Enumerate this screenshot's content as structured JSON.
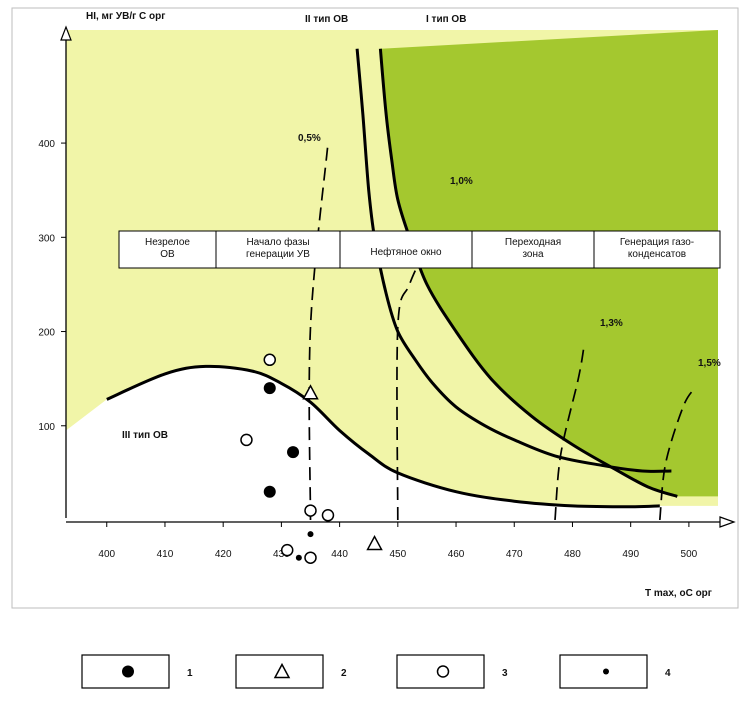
{
  "chart_data": {
    "type": "scatter",
    "xlabel": "T max, oC орг",
    "ylabel": "HI, мг УВ/г С орг",
    "xlim": [
      393,
      505
    ],
    "ylim": [
      0,
      520
    ],
    "x_ticks": [
      "400",
      "410",
      "420",
      "430",
      "440",
      "450",
      "460",
      "470",
      "480",
      "490",
      "500"
    ],
    "x_tick_values": [
      400,
      410,
      420,
      430,
      440,
      450,
      460,
      470,
      480,
      490,
      500
    ],
    "y_ticks": [
      "100",
      "200",
      "300",
      "400"
    ],
    "y_tick_values": [
      100,
      200,
      300,
      400
    ],
    "grid": false,
    "colors": {
      "type2_region": "#f1f5a8",
      "type1_region": "#a4c82f",
      "boundary": "#000000",
      "frame": "#bdbdbd"
    },
    "region_labels": {
      "type1": "I тип ОВ",
      "type2": "II тип ОВ",
      "type3": "III тип ОВ"
    },
    "boundary_curves": {
      "type3": [
        [
          400,
          128
        ],
        [
          410,
          155
        ],
        [
          417,
          163
        ],
        [
          425,
          158
        ],
        [
          430,
          145
        ],
        [
          435,
          125
        ],
        [
          440,
          95
        ],
        [
          445,
          70
        ],
        [
          450,
          50
        ],
        [
          460,
          30
        ],
        [
          470,
          20
        ],
        [
          480,
          15
        ],
        [
          490,
          14
        ],
        [
          495,
          15
        ]
      ],
      "type2": [
        [
          443,
          500
        ],
        [
          444,
          430
        ],
        [
          445,
          350
        ],
        [
          446,
          300
        ],
        [
          448,
          240
        ],
        [
          450,
          200
        ],
        [
          453,
          170
        ],
        [
          456,
          145
        ],
        [
          460,
          120
        ],
        [
          465,
          100
        ],
        [
          470,
          85
        ],
        [
          477,
          68
        ],
        [
          485,
          58
        ],
        [
          492,
          52
        ],
        [
          497,
          52
        ]
      ],
      "type1": [
        [
          447,
          500
        ],
        [
          448,
          430
        ],
        [
          449,
          380
        ],
        [
          450,
          340
        ],
        [
          452,
          300
        ],
        [
          455,
          250
        ],
        [
          460,
          200
        ],
        [
          466,
          150
        ],
        [
          473,
          110
        ],
        [
          480,
          80
        ],
        [
          487,
          55
        ],
        [
          493,
          35
        ],
        [
          498,
          25
        ]
      ]
    },
    "maturity_zones": [
      "Незрелое ОВ",
      "Начало фазы генерации УВ",
      "Нефтяное окно",
      "Переходная зона",
      "Генерация газо-конденсатов"
    ],
    "ro_isolines": [
      {
        "label": "0,5%",
        "points": [
          [
            435,
            0
          ],
          [
            435,
            205
          ],
          [
            438,
            400
          ]
        ]
      },
      {
        "label": "1,0%",
        "points": [
          [
            450,
            0
          ],
          [
            450,
            205
          ],
          [
            452,
            250
          ],
          [
            455,
            290
          ]
        ]
      },
      {
        "label": "1,3%",
        "points": [
          [
            477,
            0
          ],
          [
            478,
            70
          ],
          [
            481,
            150
          ],
          [
            482,
            185
          ]
        ]
      },
      {
        "label": "1,5%",
        "points": [
          [
            495,
            0
          ],
          [
            496,
            60
          ],
          [
            499,
            120
          ],
          [
            501,
            140
          ]
        ]
      }
    ],
    "series": [
      {
        "name": "1",
        "marker": "filled-circle",
        "points": [
          [
            428,
            140
          ],
          [
            428,
            30
          ],
          [
            432,
            72
          ]
        ]
      },
      {
        "name": "2",
        "marker": "triangle",
        "points": [
          [
            435,
            135
          ],
          [
            446,
            -25
          ]
        ]
      },
      {
        "name": "3",
        "marker": "open-circle",
        "points": [
          [
            428,
            170
          ],
          [
            424,
            85
          ],
          [
            435,
            10
          ],
          [
            438,
            5
          ],
          [
            431,
            -32
          ],
          [
            435,
            -40
          ]
        ]
      },
      {
        "name": "4",
        "marker": "small-dot",
        "points": [
          [
            435,
            -15
          ],
          [
            433,
            -40
          ]
        ]
      }
    ],
    "legend": {
      "placement": "bottom",
      "items": [
        {
          "marker": "filled-circle",
          "label": "1"
        },
        {
          "marker": "triangle",
          "label": "2"
        },
        {
          "marker": "open-circle",
          "label": "3"
        },
        {
          "marker": "small-dot",
          "label": "4"
        }
      ]
    }
  }
}
